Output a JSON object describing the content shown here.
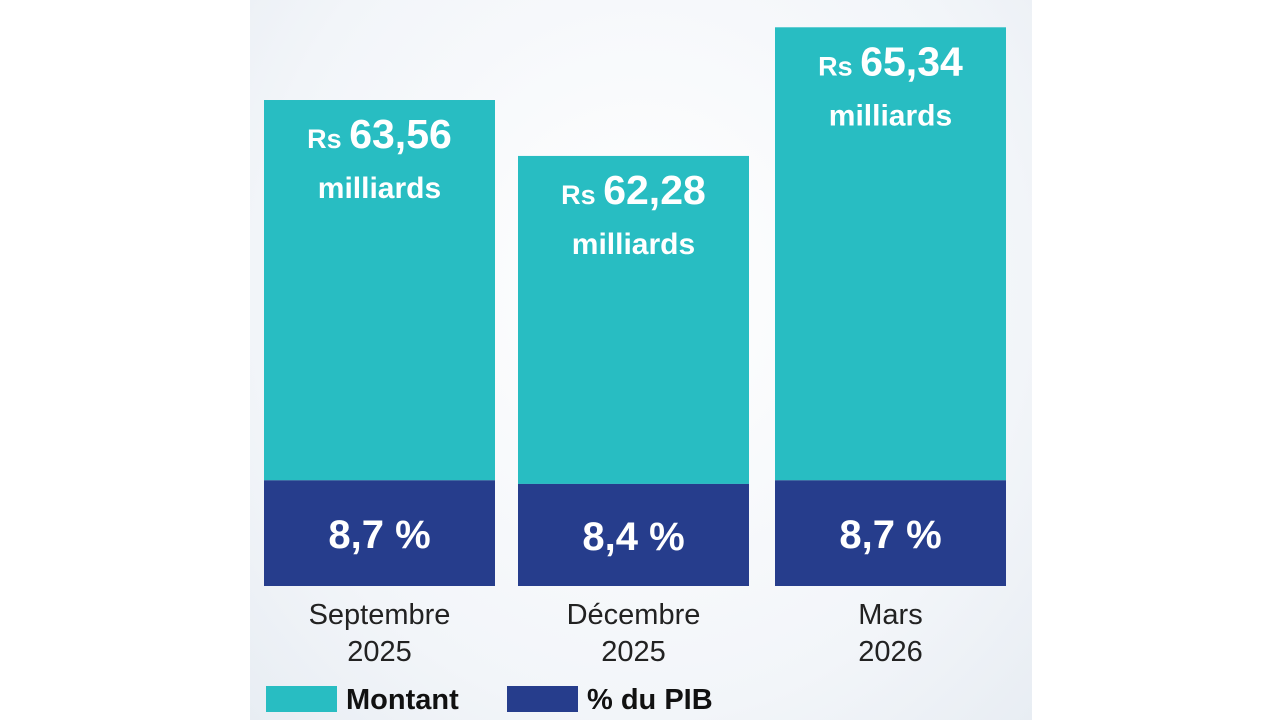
{
  "chart_data": {
    "type": "bar",
    "stacked": true,
    "categories": [
      [
        "Septembre",
        "2025"
      ],
      [
        "Décembre",
        "2025"
      ],
      [
        "Mars",
        "2026"
      ]
    ],
    "series": [
      {
        "name": "Montant",
        "color": "#28bdc2",
        "unit": "milliards",
        "currency": "Rs",
        "values": [
          63.56,
          62.28,
          65.34
        ],
        "labels": [
          "63,56",
          "62,28",
          "65,34"
        ]
      },
      {
        "name": "% du PIB",
        "color": "#263d8c",
        "values": [
          8.7,
          8.4,
          8.7
        ],
        "labels": [
          "8,7 %",
          "8,4 %",
          "8,7 %"
        ]
      }
    ],
    "legend": [
      "Montant",
      "% du PIB"
    ],
    "legend_position": "bottom",
    "grid": false,
    "ylim": [
      0,
      72
    ]
  }
}
